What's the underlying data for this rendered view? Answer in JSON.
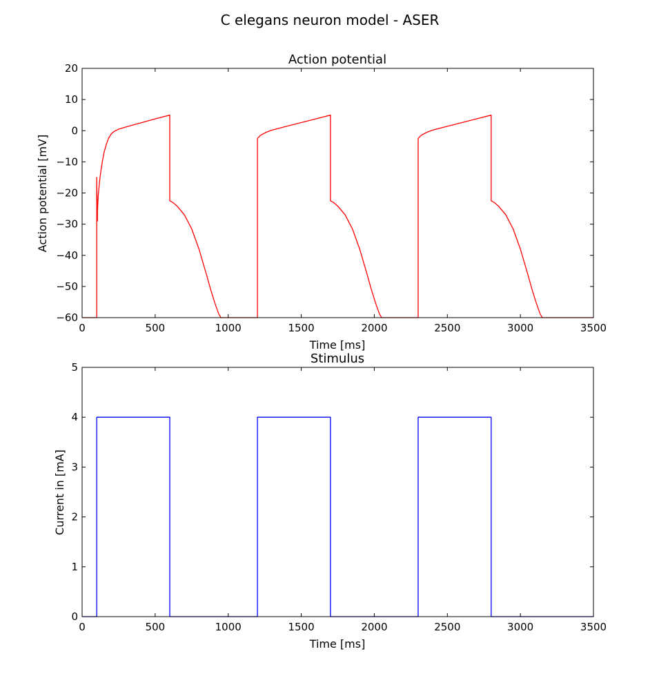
{
  "figure_title": "C elegans neuron model - ASER",
  "chart_data": [
    {
      "type": "line",
      "title": "Action potential",
      "xlabel": "Time [ms]",
      "ylabel": "Action potential [mV]",
      "xlim": [
        0,
        3500
      ],
      "ylim": [
        -60,
        20
      ],
      "xticks": [
        0,
        500,
        1000,
        1500,
        2000,
        2500,
        3000,
        3500
      ],
      "yticks": [
        20,
        10,
        0,
        -10,
        -20,
        -30,
        -40,
        -50,
        -60
      ],
      "xtick_labels": [
        "0",
        "500",
        "1000",
        "1500",
        "2000",
        "2500",
        "3000",
        "3500"
      ],
      "ytick_labels": [
        "20",
        "10",
        "0",
        "−10",
        "−20",
        "−30",
        "−40",
        "−50",
        "−60"
      ],
      "grid": false,
      "series": [
        {
          "color": "#ff0000",
          "x": [
            0,
            100,
            100,
            102,
            105,
            105,
            110,
            120,
            130,
            140,
            150,
            165,
            180,
            200,
            220,
            250,
            300,
            400,
            500,
            600,
            600,
            620,
            650,
            700,
            750,
            800,
            850,
            880,
            910,
            935,
            950,
            1200,
            1200,
            1220,
            1260,
            1300,
            1400,
            1500,
            1600,
            1700,
            1700,
            1720,
            1750,
            1800,
            1850,
            1900,
            1950,
            1980,
            2010,
            2035,
            2050,
            2300,
            2300,
            2320,
            2360,
            2400,
            2500,
            2600,
            2700,
            2800,
            2800,
            2820,
            2850,
            2900,
            2950,
            3000,
            3050,
            3080,
            3110,
            3135,
            3150,
            3500
          ],
          "y": [
            -60,
            -60,
            -15,
            -22,
            -29,
            -26,
            -21,
            -16,
            -12.5,
            -9.5,
            -7,
            -4.5,
            -2.5,
            -1,
            -0.2,
            0.5,
            1.2,
            2.5,
            3.8,
            5,
            -22.5,
            -23,
            -24.2,
            -27,
            -31.5,
            -38,
            -46,
            -51,
            -55.5,
            -58.8,
            -60,
            -60,
            -2.5,
            -1.5,
            -0.5,
            0.2,
            1.4,
            2.6,
            3.8,
            5,
            -22.5,
            -23,
            -24.2,
            -27,
            -31.5,
            -38,
            -46,
            -51,
            -55.5,
            -58.8,
            -60,
            -60,
            -2.5,
            -1.5,
            -0.5,
            0.2,
            1.4,
            2.6,
            3.8,
            5,
            -22.5,
            -23,
            -24.2,
            -27,
            -31.5,
            -38,
            -46,
            -51,
            -55.5,
            -58.8,
            -60,
            -60
          ]
        }
      ]
    },
    {
      "type": "line",
      "title": "Stimulus",
      "xlabel": "Time [ms]",
      "ylabel": "Current in [mA]",
      "xlim": [
        0,
        3500
      ],
      "ylim": [
        0,
        5
      ],
      "xticks": [
        0,
        500,
        1000,
        1500,
        2000,
        2500,
        3000,
        3500
      ],
      "yticks": [
        5,
        4,
        3,
        2,
        1,
        0
      ],
      "xtick_labels": [
        "0",
        "500",
        "1000",
        "1500",
        "2000",
        "2500",
        "3000",
        "3500"
      ],
      "ytick_labels": [
        "5",
        "4",
        "3",
        "2",
        "1",
        "0"
      ],
      "grid": false,
      "series": [
        {
          "color": "#0000ff",
          "x": [
            0,
            100,
            100,
            600,
            600,
            1200,
            1200,
            1700,
            1700,
            2300,
            2300,
            2800,
            2800,
            3500
          ],
          "y": [
            0,
            0,
            4,
            4,
            0,
            0,
            4,
            4,
            0,
            0,
            4,
            4,
            0,
            0
          ]
        }
      ]
    }
  ]
}
